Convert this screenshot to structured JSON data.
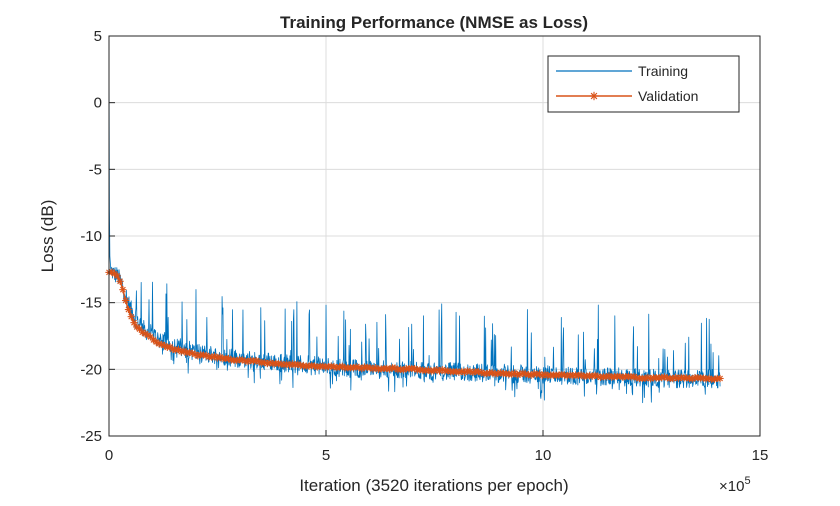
{
  "chart_data": {
    "type": "line",
    "title": "Training Performance (NMSE as Loss)",
    "xlabel": "Iteration (3520 iterations per epoch)",
    "ylabel": "Loss (dB)",
    "x_multiplier": "×10",
    "x_multiplier_exponent": "5",
    "xlim": [
      0,
      15
    ],
    "ylim": [
      -25,
      5
    ],
    "xticks": [
      "0",
      "5",
      "10",
      "15"
    ],
    "yticks": [
      "5",
      "0",
      "-5",
      "-10",
      "-15",
      "-20",
      "-25"
    ],
    "grid": true,
    "legend_position": "top-right",
    "series": [
      {
        "name": "Training",
        "color": "#0072BD",
        "marker": "none",
        "x": [
          0.0,
          0.005,
          0.01,
          0.02,
          0.04,
          0.1,
          0.2,
          0.3,
          0.5,
          0.8,
          1.2,
          1.6,
          2.0,
          3.0,
          4.0,
          5.0,
          6.0,
          7.0,
          8.0,
          9.0,
          10.0,
          11.0,
          12.0,
          13.0,
          14.08
        ],
        "y": [
          4.5,
          -2.0,
          -8.0,
          -11.5,
          -12.5,
          -12.8,
          -13.0,
          -13.6,
          -15.5,
          -17.0,
          -17.8,
          -18.3,
          -18.7,
          -19.2,
          -19.5,
          -19.8,
          -20.0,
          -20.1,
          -20.2,
          -20.3,
          -20.4,
          -20.5,
          -20.6,
          -20.7,
          -20.7
        ],
        "noise_amplitude_db": 0.7,
        "spike_count": 90
      },
      {
        "name": "Validation",
        "color": "#D95319",
        "marker": "asterisk",
        "x": [
          0.0,
          0.1,
          0.2,
          0.3,
          0.4,
          0.5,
          0.6,
          0.8,
          1.0,
          1.2,
          1.5,
          2.0,
          2.5,
          3.0,
          4.0,
          5.0,
          6.0,
          7.0,
          8.0,
          9.0,
          10.0,
          11.0,
          12.0,
          13.0,
          14.08
        ],
        "y": [
          -12.8,
          -12.7,
          -13.0,
          -13.8,
          -15.0,
          -16.0,
          -16.7,
          -17.3,
          -17.7,
          -18.1,
          -18.5,
          -18.9,
          -19.1,
          -19.3,
          -19.6,
          -19.8,
          -19.9,
          -20.0,
          -20.15,
          -20.3,
          -20.4,
          -20.5,
          -20.6,
          -20.65,
          -20.7
        ],
        "marker_count": 220
      }
    ]
  }
}
